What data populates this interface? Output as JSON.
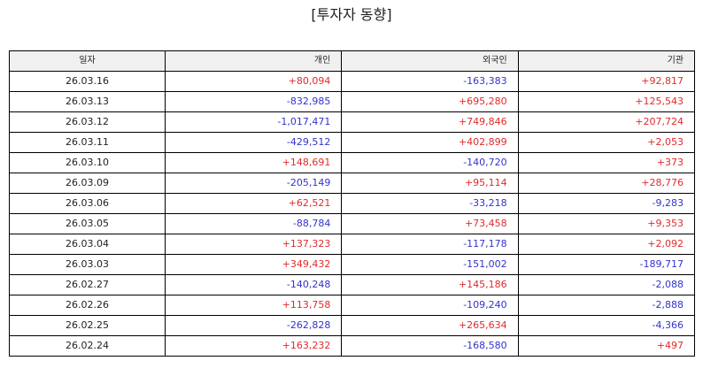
{
  "title": "[투자자 동향]",
  "colors": {
    "positive": "#e02b2b",
    "negative": "#3333cc",
    "header_bg": "#f0f0f0"
  },
  "table": {
    "headers": [
      "일자",
      "개인",
      "외국인",
      "기관"
    ],
    "rows": [
      {
        "date": "26.03.16",
        "individual": "+80,094",
        "foreign": "-163,383",
        "institution": "+92,817"
      },
      {
        "date": "26.03.13",
        "individual": "-832,985",
        "foreign": "+695,280",
        "institution": "+125,543"
      },
      {
        "date": "26.03.12",
        "individual": "-1,017,471",
        "foreign": "+749,846",
        "institution": "+207,724"
      },
      {
        "date": "26.03.11",
        "individual": "-429,512",
        "foreign": "+402,899",
        "institution": "+2,053"
      },
      {
        "date": "26.03.10",
        "individual": "+148,691",
        "foreign": "-140,720",
        "institution": "+373"
      },
      {
        "date": "26.03.09",
        "individual": "-205,149",
        "foreign": "+95,114",
        "institution": "+28,776"
      },
      {
        "date": "26.03.06",
        "individual": "+62,521",
        "foreign": "-33,218",
        "institution": "-9,283"
      },
      {
        "date": "26.03.05",
        "individual": "-88,784",
        "foreign": "+73,458",
        "institution": "+9,353"
      },
      {
        "date": "26.03.04",
        "individual": "+137,323",
        "foreign": "-117,178",
        "institution": "+2,092"
      },
      {
        "date": "26.03.03",
        "individual": "+349,432",
        "foreign": "-151,002",
        "institution": "-189,717"
      },
      {
        "date": "26.02.27",
        "individual": "-140,248",
        "foreign": "+145,186",
        "institution": "-2,088"
      },
      {
        "date": "26.02.26",
        "individual": "+113,758",
        "foreign": "-109,240",
        "institution": "-2,888"
      },
      {
        "date": "26.02.25",
        "individual": "-262,828",
        "foreign": "+265,634",
        "institution": "-4,366"
      },
      {
        "date": "26.02.24",
        "individual": "+163,232",
        "foreign": "-168,580",
        "institution": "+497"
      }
    ]
  }
}
